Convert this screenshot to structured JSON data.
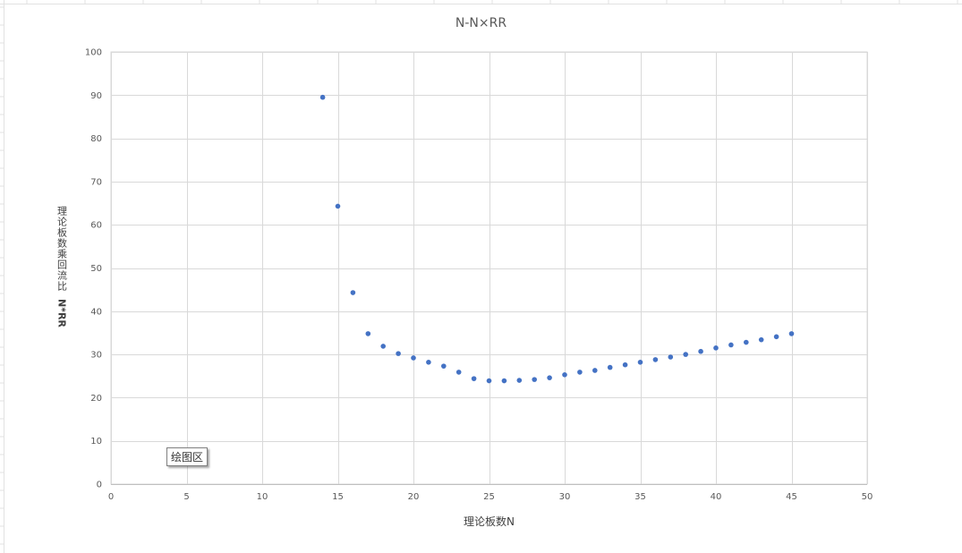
{
  "chart_data": {
    "type": "scatter",
    "title": "N-N×RR",
    "xlabel": "理论板数N",
    "ylabel_cjk": "理论板数乘回流比",
    "ylabel_latin": "N*RR",
    "xlim": [
      0,
      50
    ],
    "ylim": [
      0,
      100
    ],
    "x_ticks": [
      0,
      5,
      10,
      15,
      20,
      25,
      30,
      35,
      40,
      45,
      50
    ],
    "y_ticks": [
      0,
      10,
      20,
      30,
      40,
      50,
      60,
      70,
      80,
      90,
      100
    ],
    "grid": true,
    "series": [
      {
        "color": "#4472c4",
        "points": [
          [
            14,
            89.5
          ],
          [
            15,
            64.3
          ],
          [
            16,
            44.3
          ],
          [
            17,
            34.8
          ],
          [
            18,
            31.9
          ],
          [
            19,
            30.2
          ],
          [
            20,
            29.2
          ],
          [
            21,
            28.2
          ],
          [
            22,
            27.3
          ],
          [
            23,
            25.9
          ],
          [
            24,
            24.4
          ],
          [
            25,
            23.9
          ],
          [
            26,
            23.9
          ],
          [
            27,
            24.0
          ],
          [
            28,
            24.2
          ],
          [
            29,
            24.6
          ],
          [
            30,
            25.3
          ],
          [
            31,
            25.9
          ],
          [
            32,
            26.3
          ],
          [
            33,
            27.0
          ],
          [
            34,
            27.6
          ],
          [
            35,
            28.2
          ],
          [
            36,
            28.8
          ],
          [
            37,
            29.4
          ],
          [
            38,
            30.0
          ],
          [
            39,
            30.7
          ],
          [
            40,
            31.5
          ],
          [
            41,
            32.2
          ],
          [
            42,
            32.8
          ],
          [
            43,
            33.4
          ],
          [
            44,
            34.1
          ],
          [
            45,
            34.8
          ]
        ]
      }
    ]
  },
  "tooltip": {
    "text": "绘图区"
  }
}
